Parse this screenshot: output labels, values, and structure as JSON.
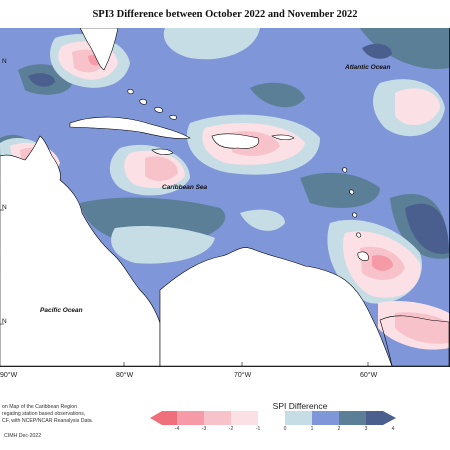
{
  "title": "SPI3 Difference between October 2022 and November 2022",
  "map": {
    "labels": {
      "atlantic": "Atlantic Ocean",
      "caribbean": "Caribbean Sea",
      "pacific": "Pacific Ocean"
    },
    "lat_labels": [
      "N",
      "N",
      "N"
    ],
    "lon_labels": [
      "90°W",
      "80°W",
      "70°W",
      "60°W"
    ]
  },
  "legend": {
    "title": "SPI Difference",
    "ticks": [
      "-4",
      "-3",
      "-2",
      "-1",
      "0",
      "1",
      "2",
      "3",
      "4"
    ],
    "colors": {
      "neg4": "#ef6f7c",
      "neg3": "#f59aa6",
      "neg2": "#f8c2cb",
      "neg1": "#fbe1e6",
      "pos1": "#c6dde6",
      "pos2": "#7f96d9",
      "pos3": "#5b7f96",
      "pos4": "#4b5f8e",
      "land": "#ffffff"
    }
  },
  "footnote": {
    "line1": "on Map of the Caribbean Region",
    "line2": "regating station based observations,",
    "line3": "CF, with NCEP/NCAR Reanalysis Data.",
    "credit": "CIMH Dec-2022"
  }
}
